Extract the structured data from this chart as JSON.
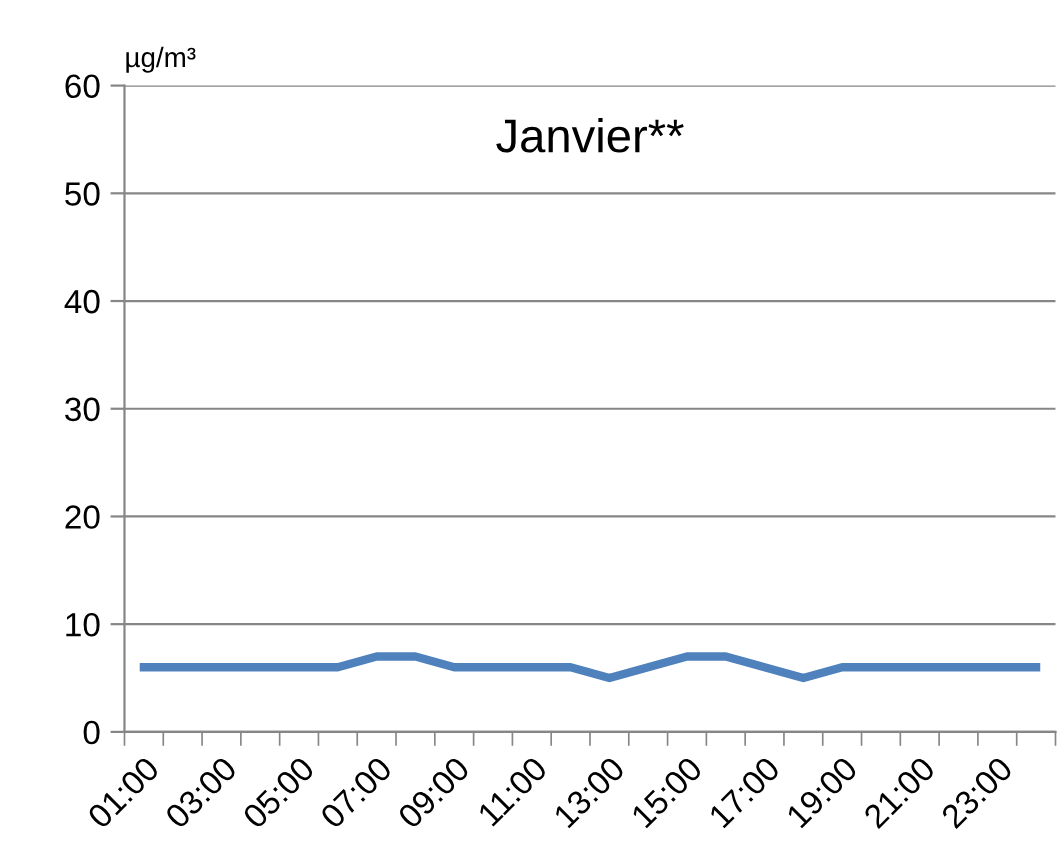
{
  "chart_data": {
    "type": "line",
    "title": "Janvier**",
    "ylabel": "µg/m³",
    "categories": [
      "01:00",
      null,
      "03:00",
      null,
      "05:00",
      null,
      "07:00",
      null,
      "09:00",
      null,
      "11:00",
      null,
      "13:00",
      null,
      "15:00",
      null,
      "17:00",
      null,
      "19:00",
      null,
      "21:00",
      null,
      "23:00",
      null
    ],
    "series": [
      {
        "color": "#4f81bd",
        "values": [
          6,
          6,
          6,
          6,
          6,
          6,
          7,
          7,
          6,
          6,
          6,
          6,
          5,
          6,
          7,
          7,
          6,
          5,
          6,
          6,
          6,
          6,
          6,
          6
        ]
      }
    ],
    "ylim": [
      0,
      60
    ],
    "yticks": [
      0,
      10,
      20,
      30,
      40,
      50,
      60
    ],
    "grid": "y",
    "legend": false,
    "marker": "none",
    "line_style": "solid"
  }
}
